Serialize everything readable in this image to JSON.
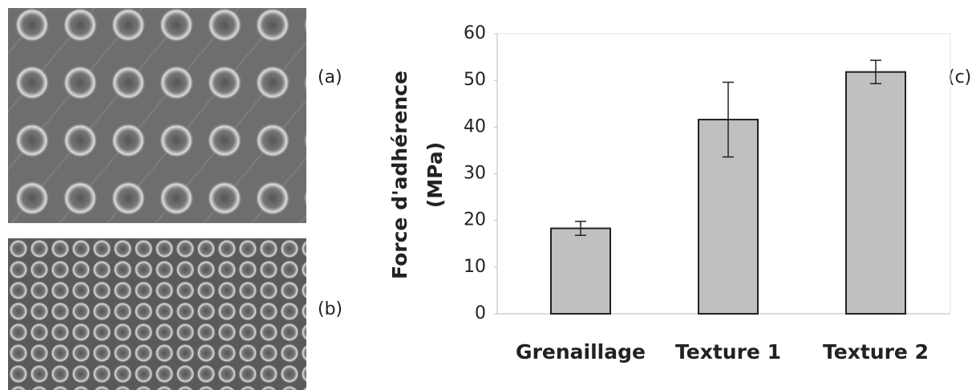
{
  "images": [
    {
      "label": "(a)"
    },
    {
      "label": "(b)"
    }
  ],
  "chart_data": {
    "type": "bar",
    "ylabel": "Force d'adhérence",
    "yunit": "(MPa)",
    "categories": [
      "Grenaillage",
      "Texture 1",
      "Texture 2"
    ],
    "values": [
      18.3,
      41.6,
      51.8
    ],
    "errors": [
      1.5,
      8,
      2.5
    ],
    "color": "#c0c0c0",
    "ylim": [
      0,
      60
    ],
    "yticks": [
      0,
      10,
      20,
      30,
      40,
      50,
      60
    ],
    "grid": false,
    "annotation": "(c)"
  }
}
